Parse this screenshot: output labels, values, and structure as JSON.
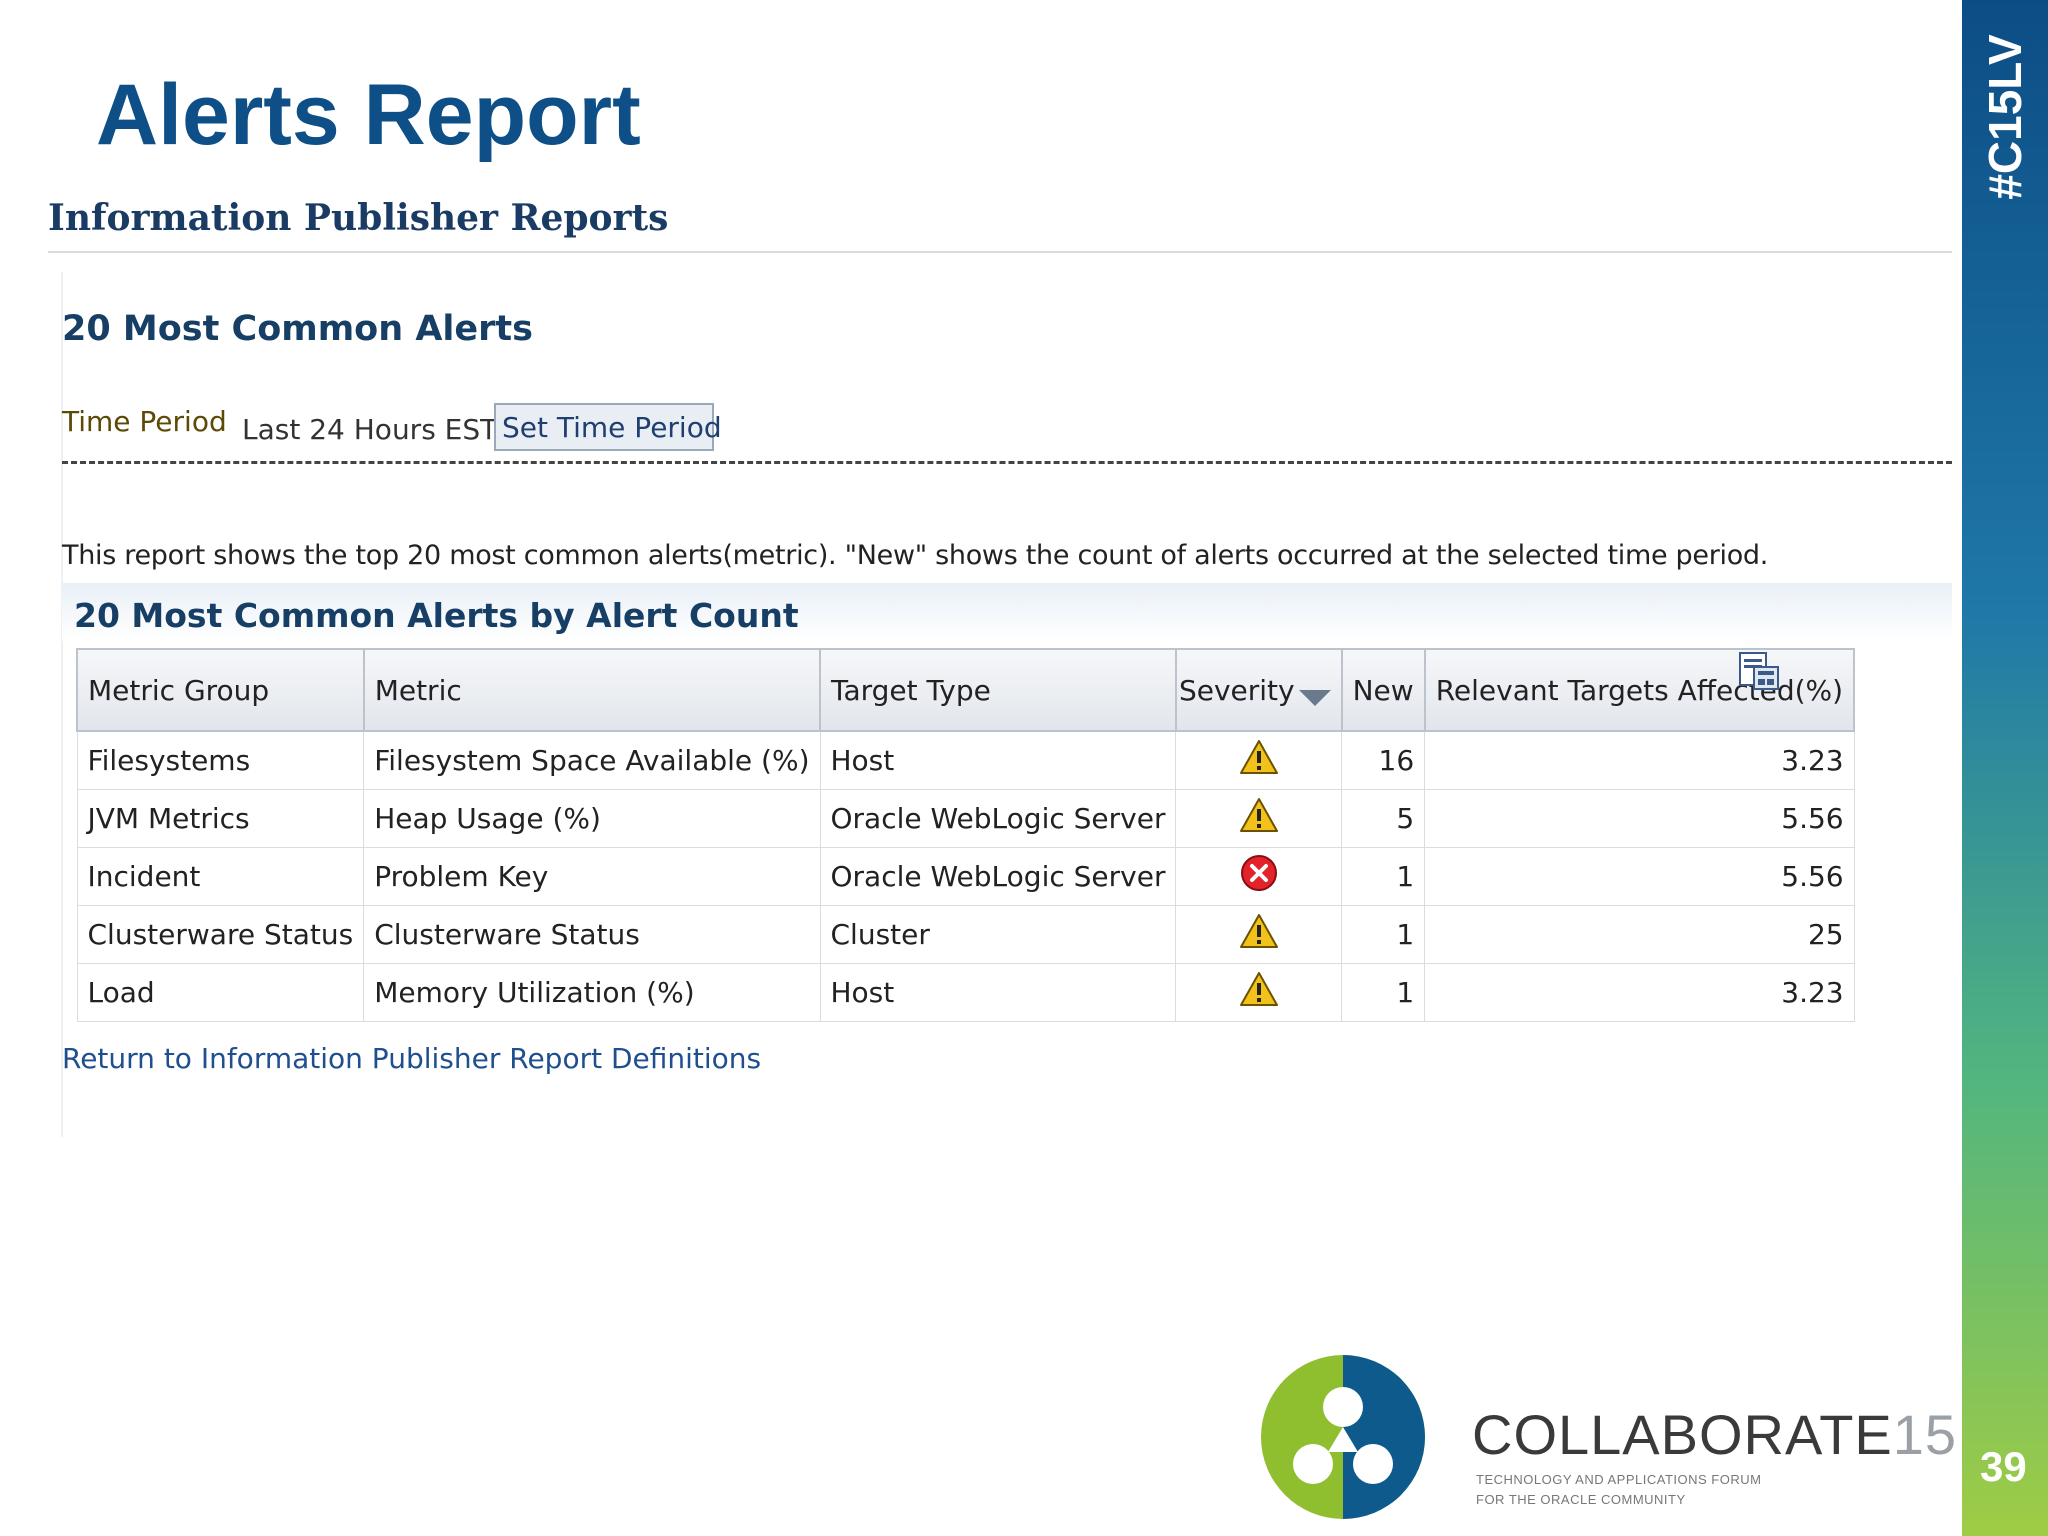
{
  "slide": {
    "title": "Alerts Report",
    "hashtag": "#C15LV",
    "page_number": "39"
  },
  "report": {
    "header": "Information Publisher Reports",
    "section_title": "20 Most Common Alerts",
    "time_period_label": "Time Period",
    "time_period_value": "Last 24 Hours EST",
    "set_time_period_button": "Set Time Period",
    "description": "This report shows the top 20 most common alerts(metric). \"New\" shows the count of alerts occurred at the selected time period.",
    "table_title": "20 Most Common Alerts by Alert Count",
    "columns": [
      "Metric Group",
      "Metric",
      "Target Type",
      "Severity",
      "New",
      "Relevant Targets Affected(%)"
    ],
    "rows": [
      {
        "metric_group": "Filesystems",
        "metric": "Filesystem Space Available (%)",
        "target_type": "Host",
        "severity": "warning",
        "new": "16",
        "affected": "3.23"
      },
      {
        "metric_group": "JVM Metrics",
        "metric": "Heap Usage (%)",
        "target_type": "Oracle WebLogic Server",
        "severity": "warning",
        "new": "5",
        "affected": "5.56"
      },
      {
        "metric_group": "Incident",
        "metric": "Problem Key",
        "target_type": "Oracle WebLogic Server",
        "severity": "critical",
        "new": "1",
        "affected": "5.56"
      },
      {
        "metric_group": "Clusterware Status",
        "metric": "Clusterware Status",
        "target_type": "Cluster",
        "severity": "warning",
        "new": "1",
        "affected": "25"
      },
      {
        "metric_group": "Load",
        "metric": "Memory Utilization (%)",
        "target_type": "Host",
        "severity": "warning",
        "new": "1",
        "affected": "3.23"
      }
    ],
    "return_link": "Return to Information Publisher Report Definitions"
  },
  "branding": {
    "name_main": "COLLABORATE",
    "name_year": "15",
    "tagline_line1": "TECHNOLOGY AND APPLICATIONS FORUM",
    "tagline_line2": "FOR THE ORACLE COMMUNITY"
  },
  "colors": {
    "title_blue": "#0d4f86",
    "warning": "#f2c21b",
    "critical": "#e2232a"
  }
}
